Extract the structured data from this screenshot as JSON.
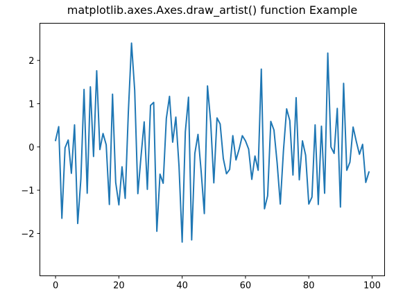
{
  "colors": {
    "line": "#1f77b4",
    "axes": "#000000",
    "background": "#ffffff"
  },
  "chart_data": {
    "type": "line",
    "title": "matplotlib.axes.Axes.draw_artist() function Example",
    "xlabel": "",
    "ylabel": "",
    "xlim": [
      -4.95,
      103.95
    ],
    "ylim": [
      -2.98,
      2.86
    ],
    "grid": false,
    "x_ticks": [
      0,
      20,
      40,
      60,
      80,
      100
    ],
    "x_tick_labels": [
      "0",
      "20",
      "40",
      "60",
      "80",
      "100"
    ],
    "y_ticks": [
      -2,
      -1,
      0,
      1,
      2
    ],
    "y_tick_labels": [
      "−2",
      "−1",
      "0",
      "1",
      "2"
    ],
    "series": [
      {
        "values": [
          0.15,
          0.47,
          -1.65,
          -0.02,
          0.16,
          -0.61,
          0.51,
          -1.77,
          -0.74,
          1.33,
          -1.07,
          1.39,
          -0.22,
          1.76,
          -0.06,
          0.31,
          0.05,
          -1.33,
          1.22,
          -0.82,
          -1.34,
          -0.46,
          -1.19,
          0.81,
          2.4,
          1.31,
          -1.08,
          -0.22,
          0.58,
          -0.98,
          0.96,
          1.03,
          -1.95,
          -0.63,
          -0.84,
          0.66,
          1.17,
          0.11,
          0.69,
          -0.44,
          -2.2,
          0.35,
          1.15,
          -2.15,
          -0.15,
          0.29,
          -0.57,
          -1.54,
          1.41,
          0.58,
          -0.83,
          0.67,
          0.53,
          -0.27,
          -0.62,
          -0.52,
          0.26,
          -0.3,
          -0.05,
          0.26,
          0.14,
          -0.05,
          -0.75,
          -0.21,
          -0.54,
          1.8,
          -1.43,
          -1.13,
          0.59,
          0.39,
          -0.37,
          -1.32,
          -0.08,
          0.88,
          0.61,
          -0.65,
          1.14,
          -0.76,
          0.14,
          -0.19,
          -1.32,
          -1.16,
          0.51,
          -1.33,
          0.48,
          -1.07,
          2.17,
          0.0,
          -0.15,
          0.89,
          -1.39,
          1.47,
          -0.54,
          -0.35,
          0.46,
          0.13,
          -0.17,
          0.06,
          -0.82,
          -0.58
        ]
      }
    ]
  }
}
